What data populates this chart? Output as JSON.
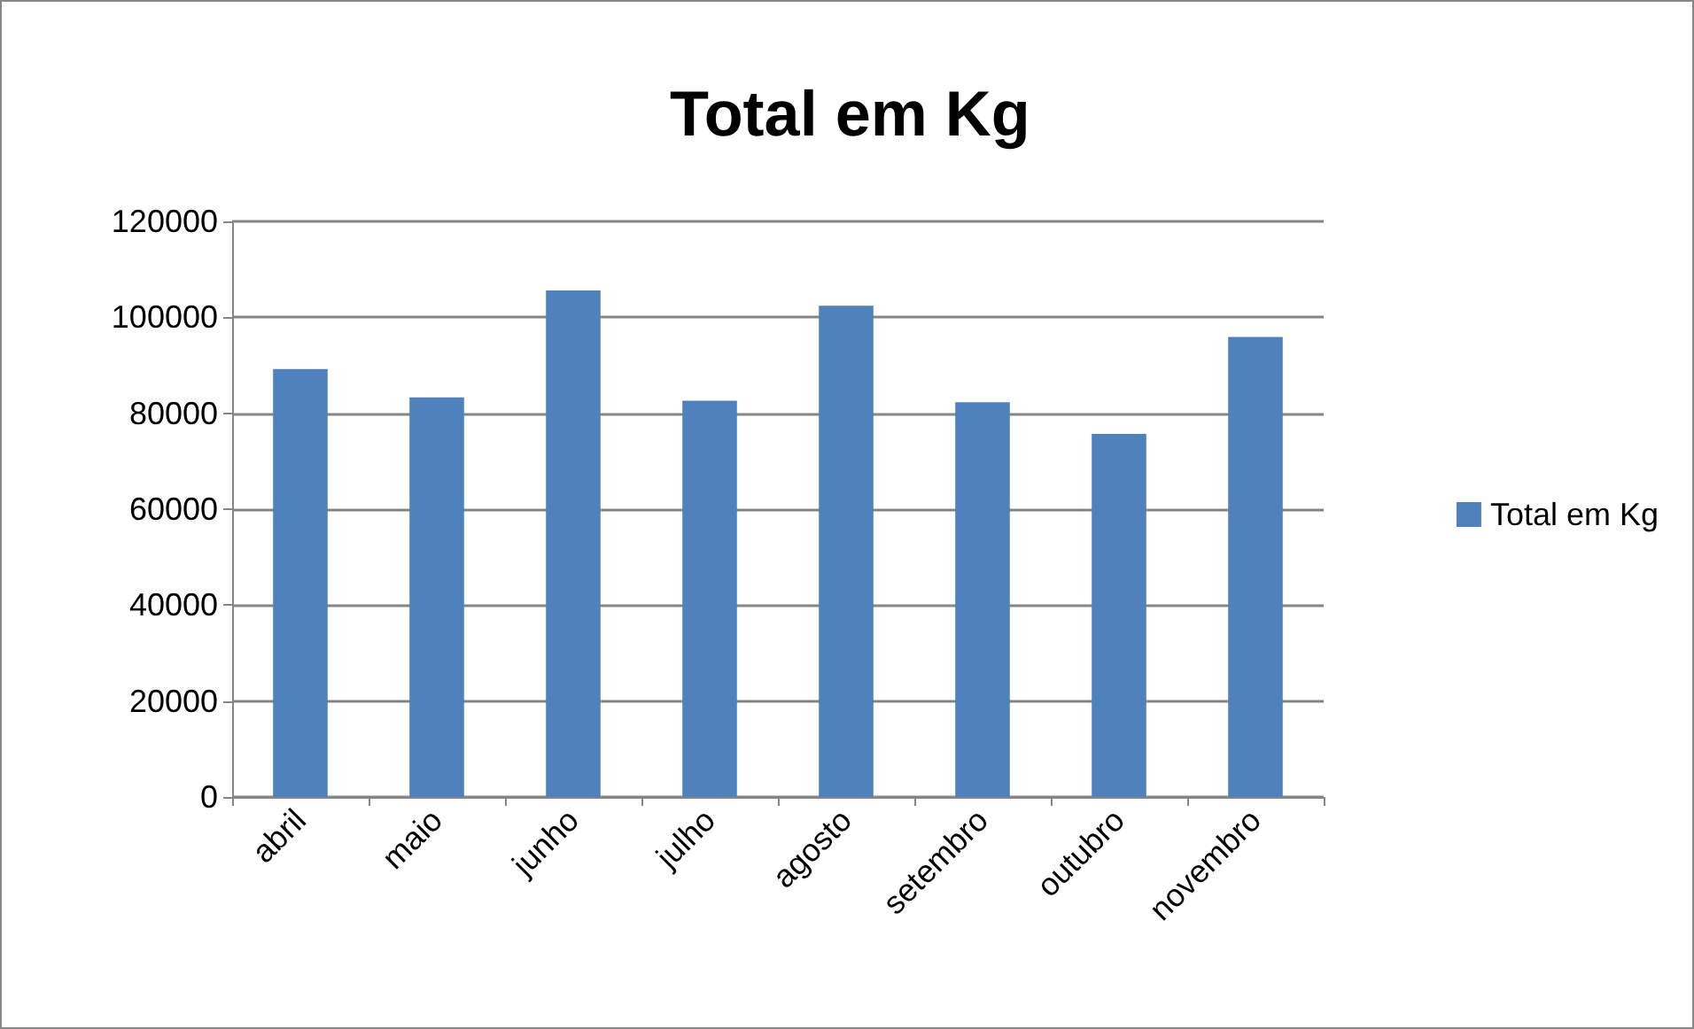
{
  "chart_data": {
    "type": "bar",
    "title": "Total em Kg",
    "categories": [
      "abril",
      "maio",
      "junho",
      "julho",
      "agosto",
      "setembro",
      "outubro",
      "novembro"
    ],
    "series": [
      {
        "name": "Total em Kg",
        "color": "#4f81bd",
        "values": [
          89200,
          83300,
          105600,
          82600,
          102400,
          82300,
          75700,
          95900
        ]
      }
    ],
    "ylim": [
      0,
      120000
    ],
    "yticks": [
      0,
      20000,
      40000,
      60000,
      80000,
      100000,
      120000
    ],
    "grid": "y",
    "legend": "right"
  }
}
